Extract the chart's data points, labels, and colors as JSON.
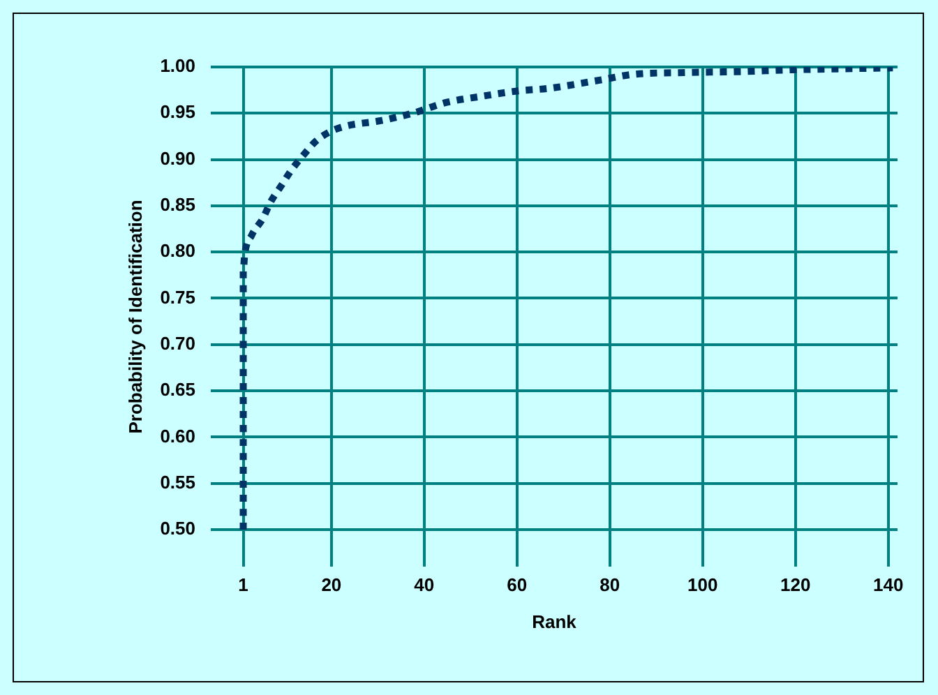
{
  "chart_data": {
    "type": "line",
    "xlabel": "Rank",
    "ylabel": "Probability of Identification",
    "x": [
      1,
      1,
      1.3,
      2.8,
      5.2,
      7,
      9.1,
      11.3,
      14,
      16.7,
      19.7,
      23,
      30.6,
      37.5,
      45,
      52,
      60,
      67,
      78,
      85,
      96,
      108,
      119.5,
      129,
      141
    ],
    "series": [
      {
        "color": "#003366",
        "values": [
          0.5,
          0.78,
          0.797,
          0.818,
          0.836,
          0.855,
          0.871,
          0.888,
          0.905,
          0.92,
          0.93,
          0.936,
          0.942,
          0.95,
          0.962,
          0.968,
          0.974,
          0.977,
          0.986,
          0.992,
          0.994,
          0.995,
          0.997,
          0.998,
          0.999
        ]
      }
    ],
    "xlim": [
      -6,
      142
    ],
    "xticks": [
      1,
      20,
      40,
      60,
      80,
      100,
      120,
      140
    ],
    "ylim": [
      0.46,
      1
    ],
    "yticks": [
      {
        "value": 0.5,
        "label": "0.50"
      },
      {
        "value": 0.55,
        "label": "0.55"
      },
      {
        "value": 0.6,
        "label": "0.60"
      },
      {
        "value": 0.65,
        "label": "0.65"
      },
      {
        "value": 0.7,
        "label": "0.70"
      },
      {
        "value": 0.75,
        "label": "0.75"
      },
      {
        "value": 0.8,
        "label": "0.80"
      },
      {
        "value": 0.85,
        "label": "0.85"
      },
      {
        "value": 0.9,
        "label": "0.90"
      },
      {
        "value": 0.95,
        "label": "0.95"
      },
      {
        "value": 1,
        "label": "1.00"
      }
    ],
    "grid": true,
    "line_style": "dotted",
    "marker": "none"
  }
}
